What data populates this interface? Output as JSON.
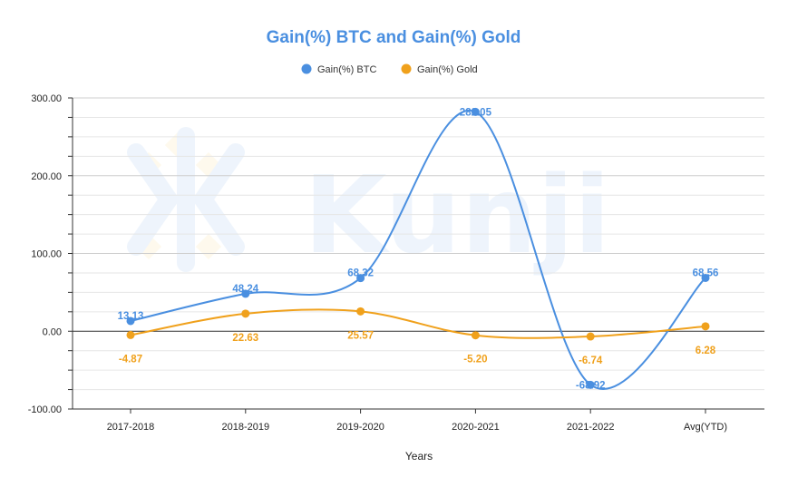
{
  "chart_data": {
    "type": "line",
    "title": "Gain(%) BTC and Gain(%) Gold",
    "xlabel": "Years",
    "ylabel": "",
    "categories": [
      "2017-2018",
      "2018-2019",
      "2019-2020",
      "2020-2021",
      "2021-2022",
      "Avg(YTD)"
    ],
    "series": [
      {
        "name": "Gain(%) BTC",
        "color": "#4a8fe0",
        "values": [
          13.13,
          48.24,
          68.32,
          282.05,
          -68.92,
          68.56
        ],
        "labels": [
          "13.13",
          "48.24",
          "68.32",
          "282.05",
          "-68.92",
          "68.56"
        ]
      },
      {
        "name": "Gain(%) Gold",
        "color": "#f0a11c",
        "values": [
          -4.87,
          22.63,
          25.57,
          -5.2,
          -6.74,
          6.28
        ],
        "labels": [
          "-4.87",
          "22.63",
          "25.57",
          "-5.20",
          "-6.74",
          "6.28"
        ]
      }
    ],
    "ylim": [
      -100,
      300
    ],
    "yticks": [
      -100,
      0,
      100,
      200,
      300
    ],
    "ytick_labels": [
      "-100.00",
      "0.00",
      "100.00",
      "200.00",
      "300.00"
    ],
    "grid": true,
    "legend_position": "top-center",
    "smooth": true,
    "title_color": "#4a8fe0",
    "watermark": "Kunji"
  }
}
